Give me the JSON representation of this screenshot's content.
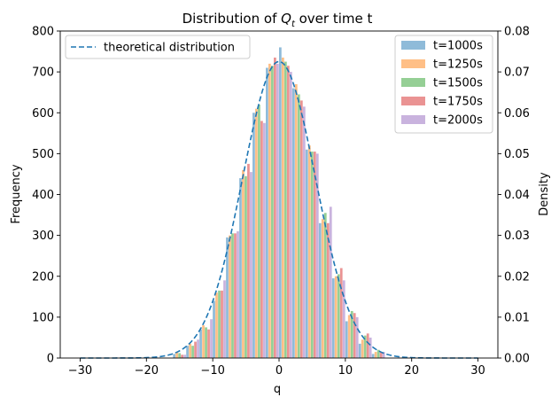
{
  "chart_data": {
    "type": "bar",
    "title_prefix": "Distribution of ",
    "title_var": "Q",
    "title_sub": "t",
    "title_suffix": " over time t",
    "xlabel": "q",
    "ylabel": "Frequency",
    "y2label": "Density",
    "xlim": [
      -33,
      33
    ],
    "ylim": [
      0,
      800
    ],
    "y2lim": [
      0,
      0.08
    ],
    "xticks": [
      -30,
      -20,
      -10,
      0,
      10,
      20,
      30
    ],
    "yticks": [
      0,
      100,
      200,
      300,
      400,
      500,
      600,
      700,
      800
    ],
    "y2ticks": [
      "0.00",
      "0.01",
      "0.02",
      "0.03",
      "0.04",
      "0.05",
      "0.06",
      "0.07",
      "0.08"
    ],
    "bin_centers": [
      -15,
      -13,
      -11,
      -9,
      -7,
      -5,
      -3,
      -1,
      1,
      3,
      5,
      7,
      9,
      11,
      13,
      15
    ],
    "series": [
      {
        "name": "t=1000s",
        "color": "#1f77b4",
        "values": [
          10,
          30,
          70,
          140,
          295,
          440,
          600,
          710,
          760,
          660,
          510,
          330,
          195,
          90,
          35,
          10
        ]
      },
      {
        "name": "t=1250s",
        "color": "#ff7f0e",
        "values": [
          15,
          35,
          80,
          160,
          300,
          460,
          610,
          720,
          735,
          670,
          520,
          340,
          200,
          105,
          45,
          15
        ]
      },
      {
        "name": "t=1500s",
        "color": "#2ca02c",
        "values": [
          12,
          30,
          75,
          165,
          305,
          445,
          620,
          715,
          725,
          645,
          505,
          355,
          205,
          115,
          55,
          20
        ]
      },
      {
        "name": "t=1750s",
        "color": "#d62728",
        "values": [
          8,
          40,
          70,
          165,
          305,
          475,
          580,
          735,
          715,
          630,
          505,
          330,
          220,
          110,
          60,
          15
        ]
      },
      {
        "name": "t=2000s",
        "color": "#9467bd",
        "values": [
          8,
          45,
          95,
          190,
          310,
          455,
          575,
          720,
          700,
          615,
          500,
          370,
          190,
          100,
          50,
          15
        ]
      }
    ],
    "theoretical": {
      "name": "theoretical distribution",
      "color": "#1f77b4",
      "mean": 0,
      "std": 5.5,
      "range": [
        -30,
        30
      ]
    },
    "legend_left": "top-left",
    "legend_right": "top-right"
  }
}
